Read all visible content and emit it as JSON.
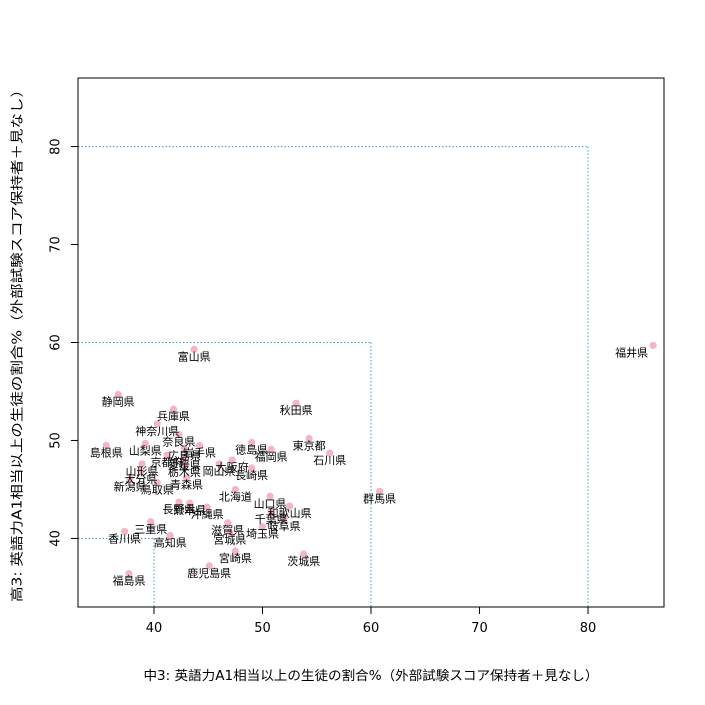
{
  "chart_data": {
    "type": "scatter",
    "xlabel": "中3: 英語力A1相当以上の生徒の割合%（外部試験スコア保持者＋見なし）",
    "ylabel": "高3: 英語力A1相当以上の生徒の割合%（外部試験スコア保持者＋見なし）",
    "xlim": [
      33,
      87
    ],
    "ylim": [
      33,
      87
    ],
    "xticks": [
      40,
      50,
      60,
      70,
      80
    ],
    "yticks": [
      40,
      50,
      60,
      70,
      80
    ],
    "point_color": "#f4b6c2",
    "guide_color": "#3a9fb3",
    "guides": [
      40,
      60,
      80
    ],
    "points": [
      {
        "label": "福井県",
        "x": 86.0,
        "y": 59.7
      },
      {
        "label": "富山県",
        "x": 43.7,
        "y": 59.3
      },
      {
        "label": "静岡県",
        "x": 36.7,
        "y": 54.7
      },
      {
        "label": "秋田県",
        "x": 53.1,
        "y": 53.8
      },
      {
        "label": "兵庫県",
        "x": 41.8,
        "y": 53.2
      },
      {
        "label": "神奈川県",
        "x": 40.3,
        "y": 51.7
      },
      {
        "label": "奈良県",
        "x": 42.3,
        "y": 50.6
      },
      {
        "label": "東京都",
        "x": 54.3,
        "y": 50.2
      },
      {
        "label": "徳島県",
        "x": 49.0,
        "y": 49.8
      },
      {
        "label": "山梨県",
        "x": 39.2,
        "y": 49.7
      },
      {
        "label": "島根県",
        "x": 35.6,
        "y": 49.5
      },
      {
        "label": "岩手県",
        "x": 44.2,
        "y": 49.5
      },
      {
        "label": "広島県",
        "x": 42.8,
        "y": 49.2
      },
      {
        "label": "福岡県",
        "x": 50.8,
        "y": 49.1
      },
      {
        "label": "石川県",
        "x": 56.2,
        "y": 48.7
      },
      {
        "label": "京都府",
        "x": 41.2,
        "y": 48.5
      },
      {
        "label": "愛媛県",
        "x": 42.8,
        "y": 48.2
      },
      {
        "label": "大阪府",
        "x": 47.2,
        "y": 48.0
      },
      {
        "label": "岡山県",
        "x": 46.0,
        "y": 47.6
      },
      {
        "label": "山形県",
        "x": 38.9,
        "y": 47.6
      },
      {
        "label": "栃木県",
        "x": 42.8,
        "y": 47.5
      },
      {
        "label": "長崎県",
        "x": 49.0,
        "y": 47.2
      },
      {
        "label": "大分県",
        "x": 38.8,
        "y": 46.8
      },
      {
        "label": "青森県",
        "x": 43.0,
        "y": 46.2
      },
      {
        "label": "新潟県",
        "x": 37.8,
        "y": 46.0
      },
      {
        "label": "鳥取県",
        "x": 40.3,
        "y": 45.7
      },
      {
        "label": "北海道",
        "x": 47.5,
        "y": 45.0
      },
      {
        "label": "群馬県",
        "x": 60.8,
        "y": 44.8
      },
      {
        "label": "山口県",
        "x": 50.7,
        "y": 44.3
      },
      {
        "label": "長野県",
        "x": 42.3,
        "y": 43.7
      },
      {
        "label": "熊本県",
        "x": 43.3,
        "y": 43.6
      },
      {
        "label": "和歌山県",
        "x": 52.5,
        "y": 43.3
      },
      {
        "label": "沖縄県",
        "x": 44.9,
        "y": 43.2
      },
      {
        "label": "千葉県",
        "x": 50.8,
        "y": 42.7
      },
      {
        "label": "岐阜県",
        "x": 52.0,
        "y": 42.0
      },
      {
        "label": "三重県",
        "x": 39.7,
        "y": 41.7
      },
      {
        "label": "滋賀県",
        "x": 46.8,
        "y": 41.6
      },
      {
        "label": "埼玉県",
        "x": 50.0,
        "y": 41.2
      },
      {
        "label": "宮城県",
        "x": 47.0,
        "y": 40.6
      },
      {
        "label": "香川県",
        "x": 37.3,
        "y": 40.7
      },
      {
        "label": "高知県",
        "x": 41.5,
        "y": 40.3
      },
      {
        "label": "宮崎県",
        "x": 47.5,
        "y": 38.7
      },
      {
        "label": "茨城県",
        "x": 53.8,
        "y": 38.4
      },
      {
        "label": "鹿児島県",
        "x": 45.1,
        "y": 37.2
      },
      {
        "label": "福島県",
        "x": 37.7,
        "y": 36.4
      }
    ]
  }
}
